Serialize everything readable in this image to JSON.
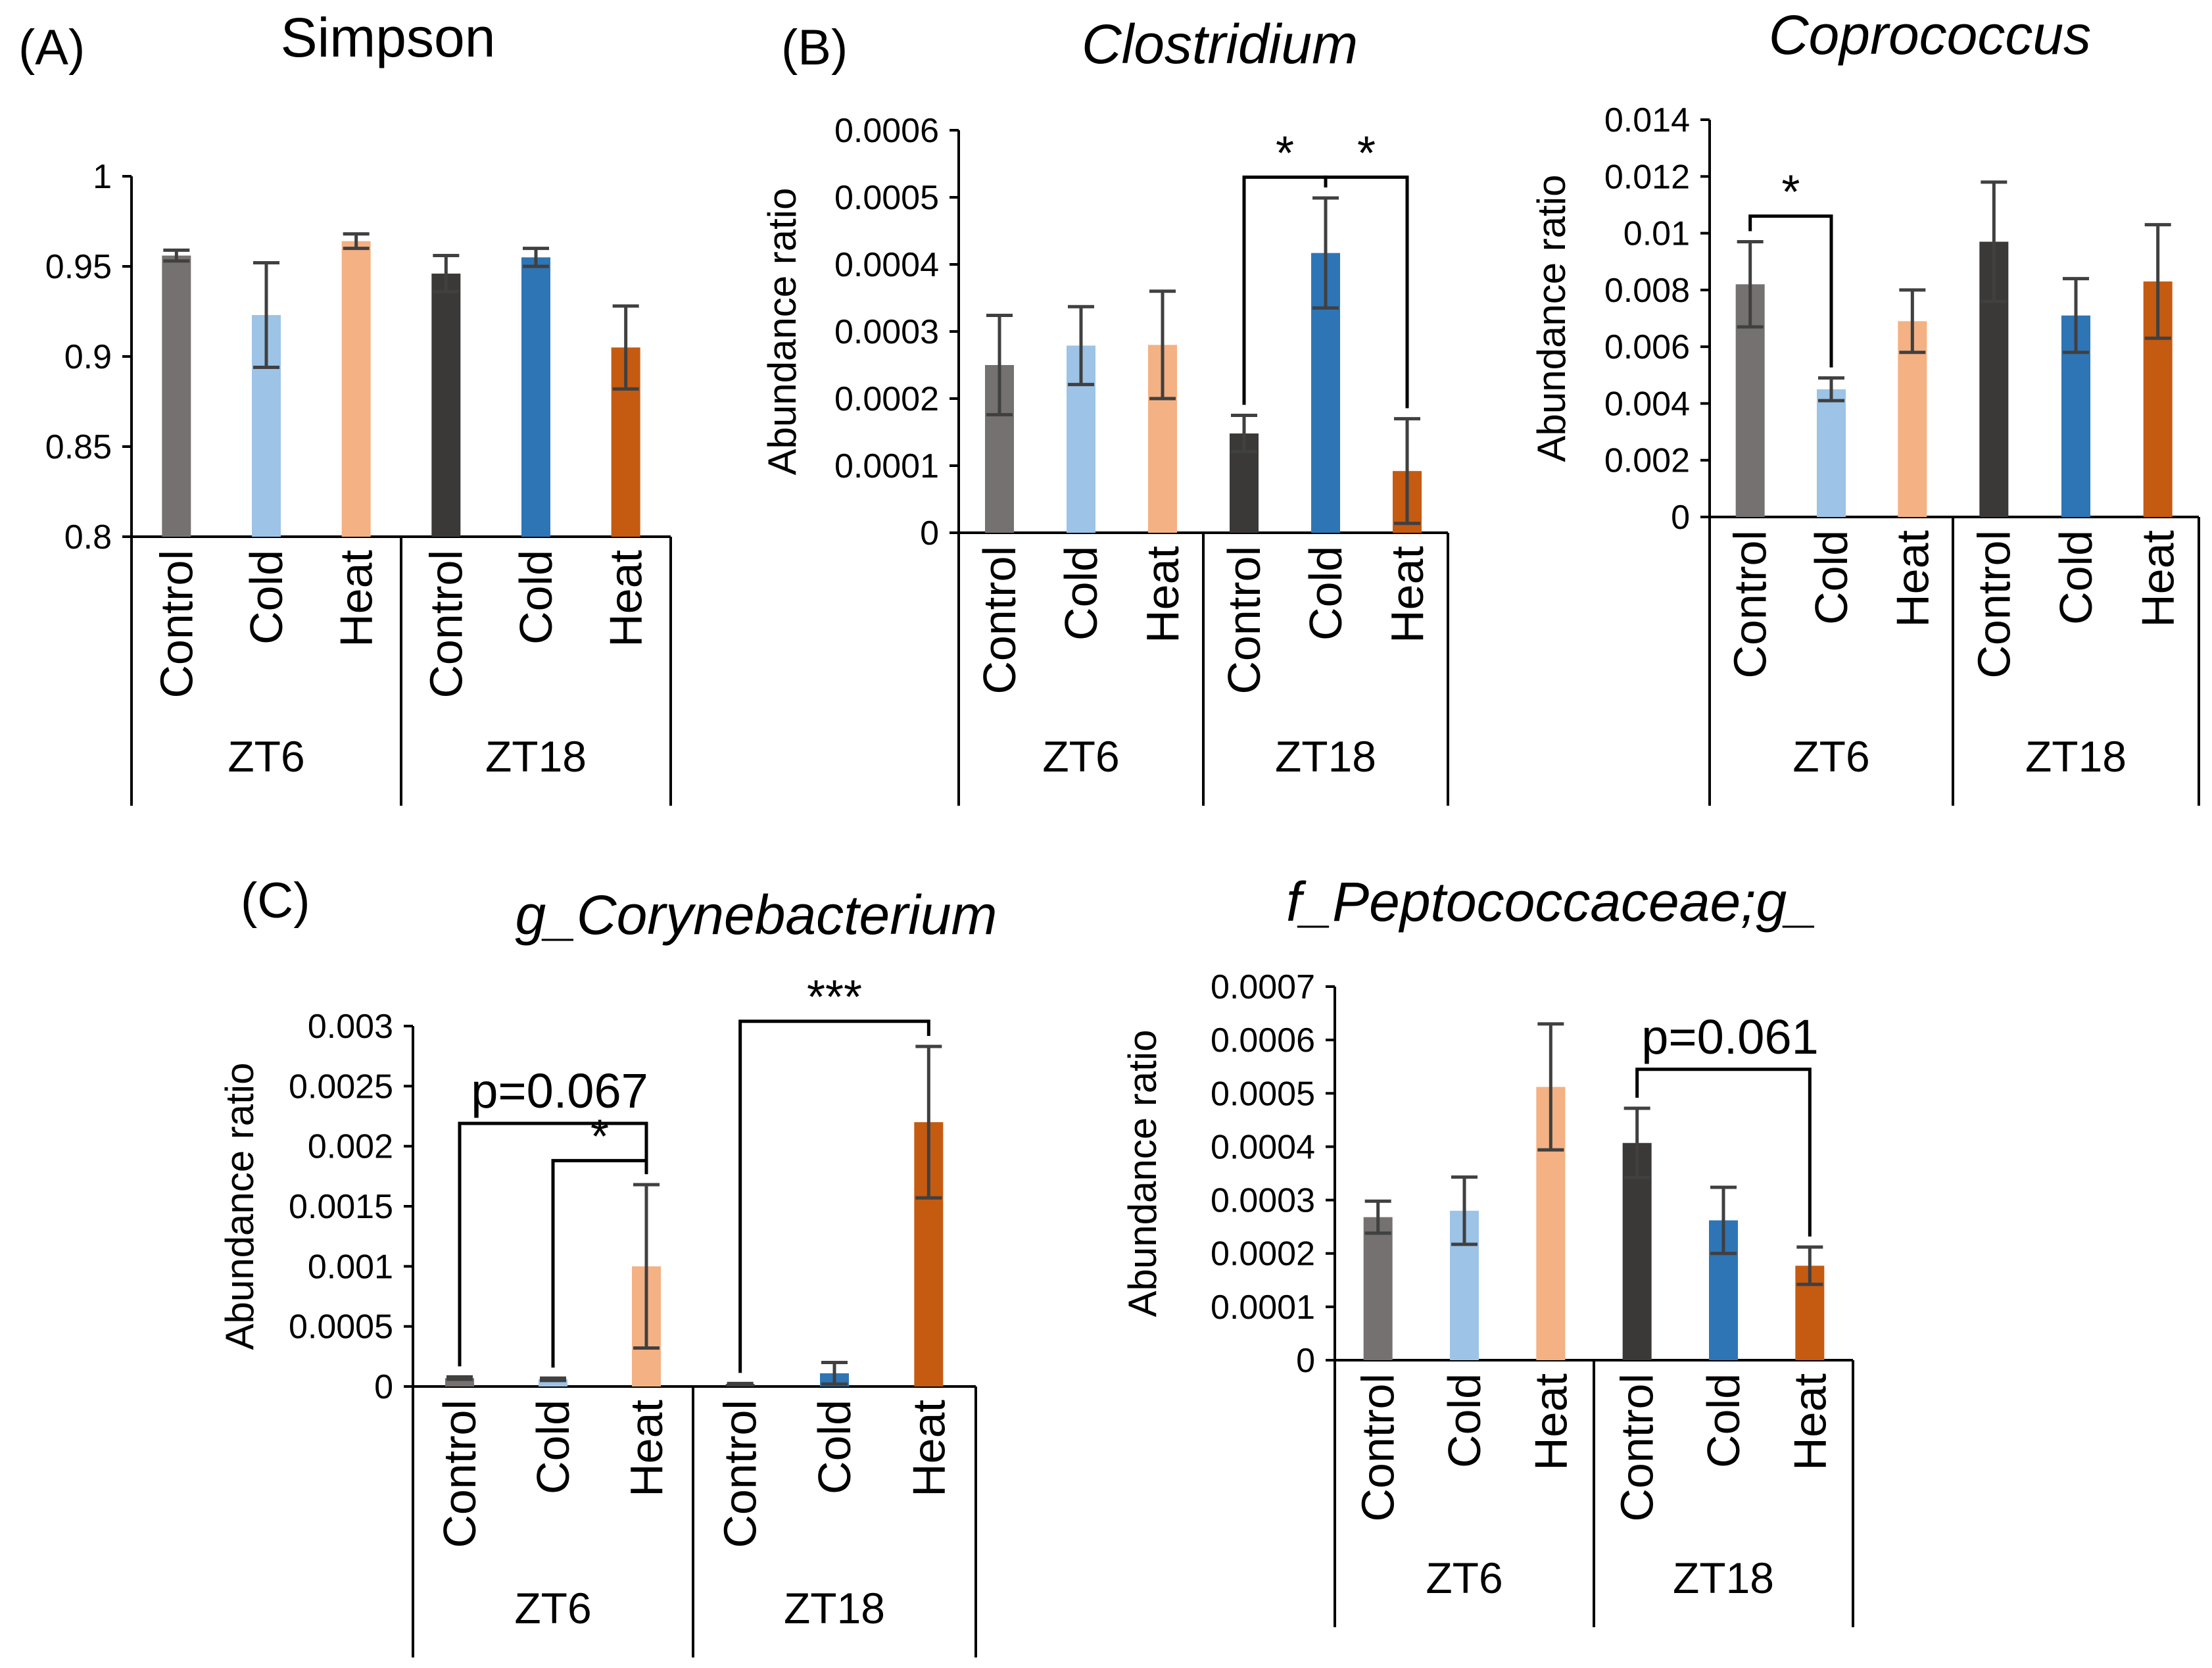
{
  "panel_labels": [
    "(A)",
    "(B)",
    "(C)"
  ],
  "colors": {
    "ZT6": [
      "#767171",
      "#9DC3E6",
      "#F4B183"
    ],
    "ZT18": [
      "#3B3838",
      "#2E75B6",
      "#C55A11"
    ],
    "error_bar": "#404040",
    "axis": "#000000"
  },
  "chart_data": [
    {
      "type": "bar",
      "title": "Simpson",
      "italic": false,
      "panel_label": "(A)",
      "ylabel": "",
      "ylim": [
        0.8,
        1
      ],
      "yticks": [
        "0.8",
        "0.85",
        "0.9",
        "0.95",
        "1"
      ],
      "categories": [
        "Control",
        "Cold",
        "Heat",
        "Control",
        "Cold",
        "Heat"
      ],
      "groups": [
        "ZT6",
        "ZT18"
      ],
      "values": [
        0.956,
        0.923,
        0.964,
        0.946,
        0.955,
        0.905
      ],
      "errors": [
        0.003,
        0.029,
        0.004,
        0.01,
        0.005,
        0.023
      ],
      "annotations": []
    },
    {
      "type": "bar",
      "title": "Clostridium",
      "italic": true,
      "panel_label": "(B)",
      "ylabel": "Abundance ratio",
      "ylim": [
        0,
        0.0006
      ],
      "yticks": [
        "0",
        "0.0001",
        "0.0002",
        "0.0003",
        "0.0004",
        "0.0005",
        "0.0006"
      ],
      "categories": [
        "Control",
        "Cold",
        "Heat",
        "Control",
        "Cold",
        "Heat"
      ],
      "groups": [
        "ZT6",
        "ZT18"
      ],
      "values": [
        0.00025,
        0.000279,
        0.00028,
        0.000148,
        0.000417,
        9.2e-05
      ],
      "errors": [
        7.4e-05,
        5.8e-05,
        8e-05,
        2.7e-05,
        8.2e-05,
        7.8e-05
      ],
      "annotations": [
        {
          "from": 3,
          "to": 4,
          "label": "*",
          "level": 0.00053
        },
        {
          "from": 4,
          "to": 5,
          "label": "*",
          "level": 0.00053
        }
      ]
    },
    {
      "type": "bar",
      "title": "Coprococcus",
      "italic": true,
      "panel_label": "",
      "ylabel": "Abundance ratio",
      "ylim": [
        0,
        0.014
      ],
      "yticks": [
        "0",
        "0.002",
        "0.004",
        "0.006",
        "0.008",
        "0.01",
        "0.012",
        "0.014"
      ],
      "categories": [
        "Control",
        "Cold",
        "Heat",
        "Control",
        "Cold",
        "Heat"
      ],
      "groups": [
        "ZT6",
        "ZT18"
      ],
      "values": [
        0.0082,
        0.0045,
        0.0069,
        0.0097,
        0.0071,
        0.0083
      ],
      "errors": [
        0.0015,
        0.0004,
        0.0011,
        0.0021,
        0.0013,
        0.002
      ],
      "annotations": [
        {
          "from": 0,
          "to": 1,
          "label": "*",
          "level": 0.0106
        }
      ]
    },
    {
      "type": "bar",
      "title": "g_Corynebacterium",
      "italic": true,
      "panel_label": "(C)",
      "ylabel": "Abundance ratio",
      "ylim": [
        0,
        0.003
      ],
      "yticks": [
        "0",
        "0.0005",
        "0.001",
        "0.0015",
        "0.002",
        "0.0025",
        "0.003"
      ],
      "categories": [
        "Control",
        "Cold",
        "Heat",
        "Control",
        "Cold",
        "Heat"
      ],
      "groups": [
        "ZT6",
        "ZT18"
      ],
      "values": [
        7e-05,
        6e-05,
        0.001,
        2e-05,
        0.00011,
        0.0022
      ],
      "errors": [
        1e-05,
        1e-05,
        0.00068,
        5e-06,
        9e-05,
        0.00063
      ],
      "annotations": [
        {
          "from": 0,
          "to": 2,
          "label": "p=0.067",
          "level": 0.00219
        },
        {
          "from": 1,
          "to": 2,
          "label": "*",
          "level": 0.00188
        },
        {
          "from": 3,
          "to": 5,
          "label": "***",
          "level": 0.00304
        }
      ]
    },
    {
      "type": "bar",
      "title": "f_Peptococcaceae;g_",
      "italic": true,
      "panel_label": "",
      "ylabel": "Abundance ratio",
      "ylim": [
        0,
        0.0007
      ],
      "yticks": [
        "0",
        "0.0001",
        "0.0002",
        "0.0003",
        "0.0004",
        "0.0005",
        "0.0006",
        "0.0007"
      ],
      "categories": [
        "Control",
        "Cold",
        "Heat",
        "Control",
        "Cold",
        "Heat"
      ],
      "groups": [
        "ZT6",
        "ZT18"
      ],
      "values": [
        0.000268,
        0.00028,
        0.000512,
        0.000407,
        0.000262,
        0.000177
      ],
      "errors": [
        3e-05,
        6.3e-05,
        0.000118,
        6.5e-05,
        6.2e-05,
        3.5e-05
      ],
      "annotations": [
        {
          "from": 3,
          "to": 5,
          "label": "p=0.061",
          "level": 0.000545
        }
      ]
    }
  ]
}
